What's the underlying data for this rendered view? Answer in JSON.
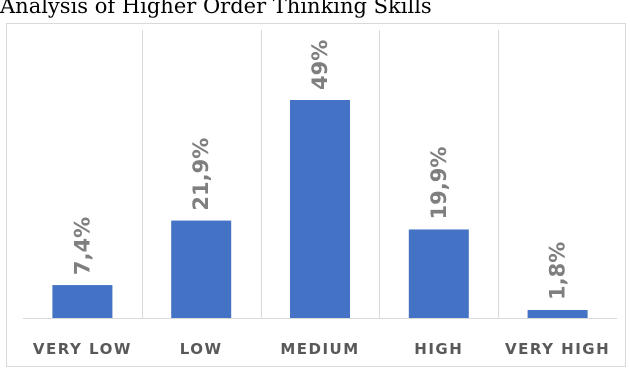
{
  "title": "Analysis of Higher Order Thinking Skills",
  "chart_data": {
    "type": "bar",
    "categories": [
      "VERY LOW",
      "LOW",
      "MEDIUM",
      "HIGH",
      "VERY HIGH"
    ],
    "values": [
      7.4,
      21.9,
      49,
      19.9,
      1.8
    ],
    "data_labels": [
      "7,4%",
      "21,9%",
      "49%",
      "19,9%",
      "1,8%"
    ],
    "xlabel": "",
    "ylabel": "",
    "ylim": [
      0,
      49
    ],
    "grid": "vertical category separators",
    "legend": "none",
    "bar_color": "#4472c4",
    "label_color": "#7f7f7f",
    "category_color": "#595959"
  }
}
